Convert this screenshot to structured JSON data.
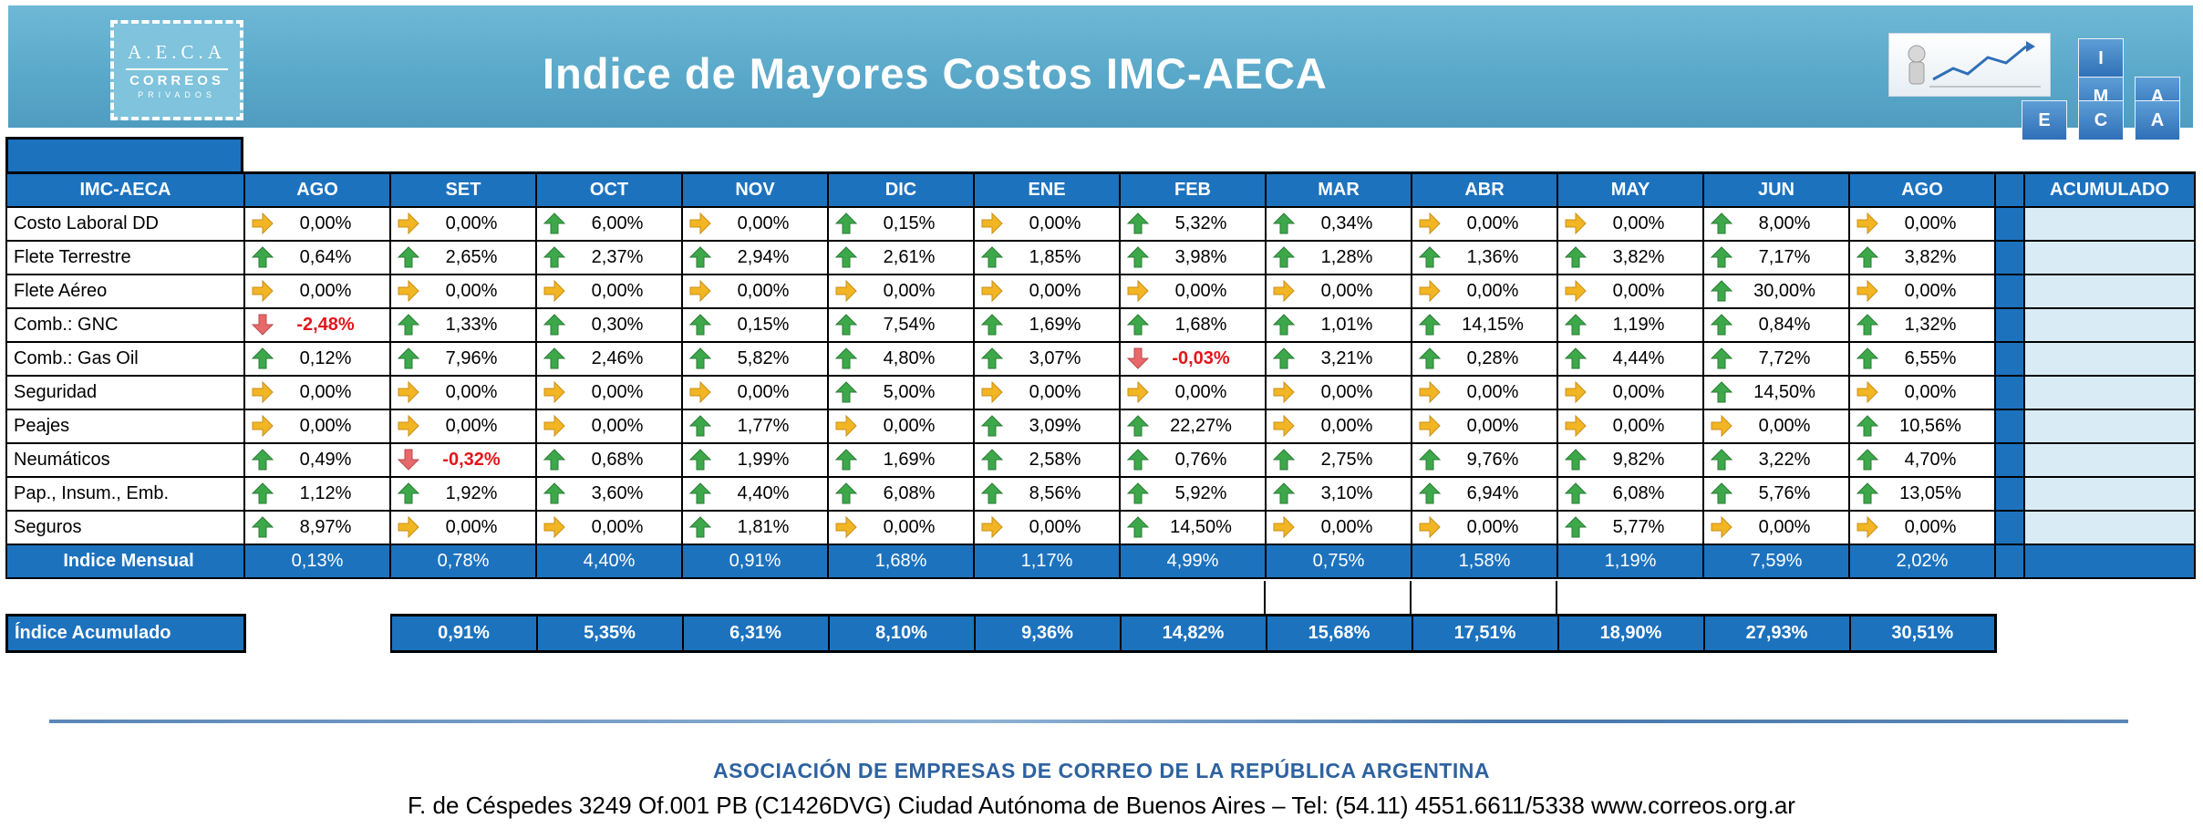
{
  "header": {
    "title": "Indice de Mayores Costos IMC-AECA",
    "logo_left": {
      "line1": "A.E.C.A",
      "line2": "CORREOS",
      "line3": "PRIVADOS"
    },
    "logo_right": {
      "letters": [
        "I",
        "M",
        "A",
        "E",
        "C",
        "A"
      ]
    },
    "banner_color": "#5ba9ca"
  },
  "table": {
    "corner_label": "IMC-AECA",
    "months": [
      "AGO",
      "SET",
      "OCT",
      "NOV",
      "DIC",
      "ENE",
      "FEB",
      "MAR",
      "ABR",
      "MAY",
      "JUN",
      "AGO"
    ],
    "acumulado_header": "ACUMULADO",
    "rows": [
      {
        "label": "Costo Laboral DD",
        "values": [
          "0,00%",
          "0,00%",
          "6,00%",
          "0,00%",
          "0,15%",
          "0,00%",
          "5,32%",
          "0,34%",
          "0,00%",
          "0,00%",
          "8,00%",
          "0,00%"
        ],
        "trend": [
          "flat",
          "flat",
          "up",
          "flat",
          "up",
          "flat",
          "up",
          "up",
          "flat",
          "flat",
          "up",
          "flat"
        ]
      },
      {
        "label": "Flete Terrestre",
        "values": [
          "0,64%",
          "2,65%",
          "2,37%",
          "2,94%",
          "2,61%",
          "1,85%",
          "3,98%",
          "1,28%",
          "1,36%",
          "3,82%",
          "7,17%",
          "3,82%"
        ],
        "trend": [
          "up",
          "up",
          "up",
          "up",
          "up",
          "up",
          "up",
          "up",
          "up",
          "up",
          "up",
          "up"
        ]
      },
      {
        "label": "Flete Aéreo",
        "values": [
          "0,00%",
          "0,00%",
          "0,00%",
          "0,00%",
          "0,00%",
          "0,00%",
          "0,00%",
          "0,00%",
          "0,00%",
          "0,00%",
          "30,00%",
          "0,00%"
        ],
        "trend": [
          "flat",
          "flat",
          "flat",
          "flat",
          "flat",
          "flat",
          "flat",
          "flat",
          "flat",
          "flat",
          "up",
          "flat"
        ]
      },
      {
        "label": "Comb.: GNC",
        "values": [
          "-2,48%",
          "1,33%",
          "0,30%",
          "0,15%",
          "7,54%",
          "1,69%",
          "1,68%",
          "1,01%",
          "14,15%",
          "1,19%",
          "0,84%",
          "1,32%"
        ],
        "trend": [
          "down",
          "up",
          "up",
          "up",
          "up",
          "up",
          "up",
          "up",
          "up",
          "up",
          "up",
          "up"
        ]
      },
      {
        "label": "Comb.: Gas Oil",
        "values": [
          "0,12%",
          "7,96%",
          "2,46%",
          "5,82%",
          "4,80%",
          "3,07%",
          "-0,03%",
          "3,21%",
          "0,28%",
          "4,44%",
          "7,72%",
          "6,55%"
        ],
        "trend": [
          "up",
          "up",
          "up",
          "up",
          "up",
          "up",
          "down",
          "up",
          "up",
          "up",
          "up",
          "up"
        ]
      },
      {
        "label": "Seguridad",
        "values": [
          "0,00%",
          "0,00%",
          "0,00%",
          "0,00%",
          "5,00%",
          "0,00%",
          "0,00%",
          "0,00%",
          "0,00%",
          "0,00%",
          "14,50%",
          "0,00%"
        ],
        "trend": [
          "flat",
          "flat",
          "flat",
          "flat",
          "up",
          "flat",
          "flat",
          "flat",
          "flat",
          "flat",
          "up",
          "flat"
        ]
      },
      {
        "label": "Peajes",
        "values": [
          "0,00%",
          "0,00%",
          "0,00%",
          "1,77%",
          "0,00%",
          "3,09%",
          "22,27%",
          "0,00%",
          "0,00%",
          "0,00%",
          "0,00%",
          "10,56%"
        ],
        "trend": [
          "flat",
          "flat",
          "flat",
          "up",
          "flat",
          "up",
          "up",
          "flat",
          "flat",
          "flat",
          "flat",
          "up"
        ]
      },
      {
        "label": "Neumáticos",
        "values": [
          "0,49%",
          "-0,32%",
          "0,68%",
          "1,99%",
          "1,69%",
          "2,58%",
          "0,76%",
          "2,75%",
          "9,76%",
          "9,82%",
          "3,22%",
          "4,70%"
        ],
        "trend": [
          "up",
          "down",
          "up",
          "up",
          "up",
          "up",
          "up",
          "up",
          "up",
          "up",
          "up",
          "up"
        ]
      },
      {
        "label": "Pap., Insum., Emb.",
        "values": [
          "1,12%",
          "1,92%",
          "3,60%",
          "4,40%",
          "6,08%",
          "8,56%",
          "5,92%",
          "3,10%",
          "6,94%",
          "6,08%",
          "5,76%",
          "13,05%"
        ],
        "trend": [
          "up",
          "up",
          "up",
          "up",
          "up",
          "up",
          "up",
          "up",
          "up",
          "up",
          "up",
          "up"
        ]
      },
      {
        "label": "Seguros",
        "values": [
          "8,97%",
          "0,00%",
          "0,00%",
          "1,81%",
          "0,00%",
          "0,00%",
          "14,50%",
          "0,00%",
          "0,00%",
          "5,77%",
          "0,00%",
          "0,00%"
        ],
        "trend": [
          "up",
          "flat",
          "flat",
          "up",
          "flat",
          "flat",
          "up",
          "flat",
          "flat",
          "up",
          "flat",
          "flat"
        ]
      }
    ],
    "mensual": {
      "label": "Indice Mensual",
      "values": [
        "0,13%",
        "0,78%",
        "4,40%",
        "0,91%",
        "1,68%",
        "1,17%",
        "4,99%",
        "0,75%",
        "1,58%",
        "1,19%",
        "7,59%",
        "2,02%"
      ]
    },
    "acumulado": {
      "label": "Índice Acumulado",
      "values": [
        "0,91%",
        "5,35%",
        "6,31%",
        "8,10%",
        "9,36%",
        "14,82%",
        "15,68%",
        "17,51%",
        "18,90%",
        "27,93%",
        "30,51%"
      ]
    },
    "colors": {
      "header_blue": "#1d72be",
      "up": "#3da84a",
      "flat": "#f2b523",
      "down": "#e8696b",
      "negative_text": "#e3151b",
      "acum_cell": "#d9ecf5"
    }
  },
  "footer": {
    "org": "ASOCIACIÓN DE EMPRESAS DE CORREO DE LA REPÚBLICA ARGENTINA",
    "address": "F. de Céspedes 3249 Of.001 PB (C1426DVG) Ciudad Autónoma de Buenos Aires – Tel: (54.11) 4551.6611/5338 www.correos.org.ar"
  }
}
